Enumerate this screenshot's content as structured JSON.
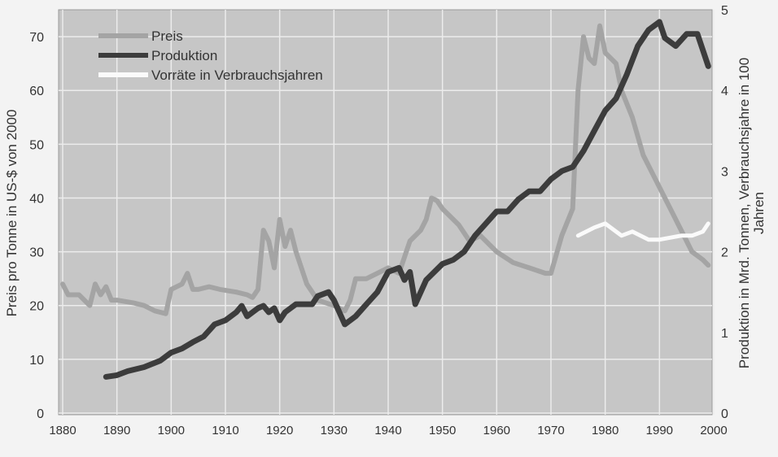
{
  "chart_data": {
    "type": "line",
    "title": "",
    "xlabel": "",
    "ylabel": "Preis pro Tonne in US-$ von 2000",
    "y2label_line1": "Produktion in Mrd. Tonnen, Verbrauchsjahre in 100",
    "y2label_line2": "Jahren",
    "xlim": [
      1880,
      2000
    ],
    "ylim": [
      0,
      75
    ],
    "y2lim": [
      0,
      5
    ],
    "x_ticks": [
      "1880",
      "1890",
      "1900",
      "1910",
      "1920",
      "1930",
      "1940",
      "1950",
      "1960",
      "1970",
      "1980",
      "1990",
      "2000"
    ],
    "y_ticks": [
      "0",
      "10",
      "20",
      "30",
      "40",
      "50",
      "60",
      "70"
    ],
    "y2_ticks": [
      "0",
      "1",
      "2",
      "3",
      "4",
      "5"
    ],
    "grid": true,
    "legend_position": "top-left",
    "colors": {
      "plot_bg": "#c6c6c6",
      "grid": "#ececec",
      "preis": "#a4a4a4",
      "produktion": "#3c3c3c",
      "vorraete": "#fafafa"
    },
    "series": [
      {
        "name": "Preis",
        "axis": "left",
        "x": [
          1880,
          1881,
          1883,
          1885,
          1886,
          1887,
          1888,
          1889,
          1890,
          1893,
          1895,
          1897,
          1899,
          1900,
          1902,
          1903,
          1904,
          1905,
          1907,
          1909,
          1912,
          1914,
          1915,
          1916,
          1917,
          1918,
          1919,
          1920,
          1921,
          1922,
          1923,
          1925,
          1927,
          1930,
          1932,
          1933,
          1934,
          1936,
          1938,
          1940,
          1942,
          1944,
          1946,
          1947,
          1948,
          1949,
          1950,
          1952,
          1953,
          1955,
          1957,
          1960,
          1963,
          1966,
          1969,
          1970,
          1972,
          1974,
          1975,
          1976,
          1977,
          1978,
          1979,
          1980,
          1982,
          1983,
          1985,
          1987,
          1990,
          1992,
          1994,
          1996,
          1998,
          1999
        ],
        "values": [
          24,
          22,
          22,
          20,
          24,
          22,
          23.5,
          21,
          21,
          20.5,
          20,
          19,
          18.5,
          23,
          24,
          26,
          23,
          23,
          23.5,
          23,
          22.5,
          22,
          21.5,
          23,
          34,
          32,
          27,
          36,
          31,
          34,
          30,
          24,
          21,
          20,
          19,
          21,
          25,
          25,
          26,
          27,
          26,
          32,
          34,
          36,
          40,
          39.5,
          38,
          36,
          35,
          32,
          33,
          30,
          28,
          27,
          26,
          26,
          33,
          38,
          60,
          70,
          66,
          65,
          72,
          67,
          65,
          60,
          55,
          48,
          42,
          38,
          34,
          30,
          28.5,
          27.5
        ]
      },
      {
        "name": "Produktion",
        "axis": "right",
        "x": [
          1888,
          1890,
          1892,
          1895,
          1898,
          1900,
          1902,
          1904,
          1906,
          1908,
          1910,
          1912,
          1913,
          1914,
          1916,
          1917,
          1918,
          1919,
          1920,
          1921,
          1922,
          1923,
          1926,
          1927,
          1929,
          1930,
          1931,
          1932,
          1934,
          1936,
          1938,
          1940,
          1942,
          1943,
          1944,
          1945,
          1947,
          1950,
          1952,
          1954,
          1956,
          1958,
          1960,
          1962,
          1964,
          1966,
          1968,
          1970,
          1972,
          1974,
          1976,
          1978,
          1980,
          1982,
          1984,
          1986,
          1988,
          1990,
          1991,
          1993,
          1995,
          1997,
          1999
        ],
        "values": [
          0.45,
          0.47,
          0.52,
          0.57,
          0.65,
          0.75,
          0.8,
          0.88,
          0.95,
          1.1,
          1.15,
          1.25,
          1.33,
          1.2,
          1.3,
          1.33,
          1.25,
          1.3,
          1.15,
          1.25,
          1.3,
          1.35,
          1.35,
          1.45,
          1.5,
          1.4,
          1.25,
          1.1,
          1.2,
          1.35,
          1.5,
          1.75,
          1.8,
          1.65,
          1.75,
          1.35,
          1.65,
          1.85,
          1.9,
          2.0,
          2.2,
          2.35,
          2.5,
          2.5,
          2.65,
          2.75,
          2.75,
          2.9,
          3.0,
          3.05,
          3.25,
          3.5,
          3.75,
          3.9,
          4.2,
          4.55,
          4.75,
          4.85,
          4.65,
          4.55,
          4.7,
          4.7,
          4.3
        ]
      },
      {
        "name": "Vorräte in Verbrauchsjahren",
        "axis": "right",
        "x": [
          1975,
          1978,
          1980,
          1983,
          1985,
          1988,
          1990,
          1994,
          1996,
          1998,
          1999
        ],
        "values": [
          2.2,
          2.3,
          2.35,
          2.2,
          2.25,
          2.15,
          2.15,
          2.2,
          2.2,
          2.25,
          2.35
        ]
      }
    ]
  }
}
